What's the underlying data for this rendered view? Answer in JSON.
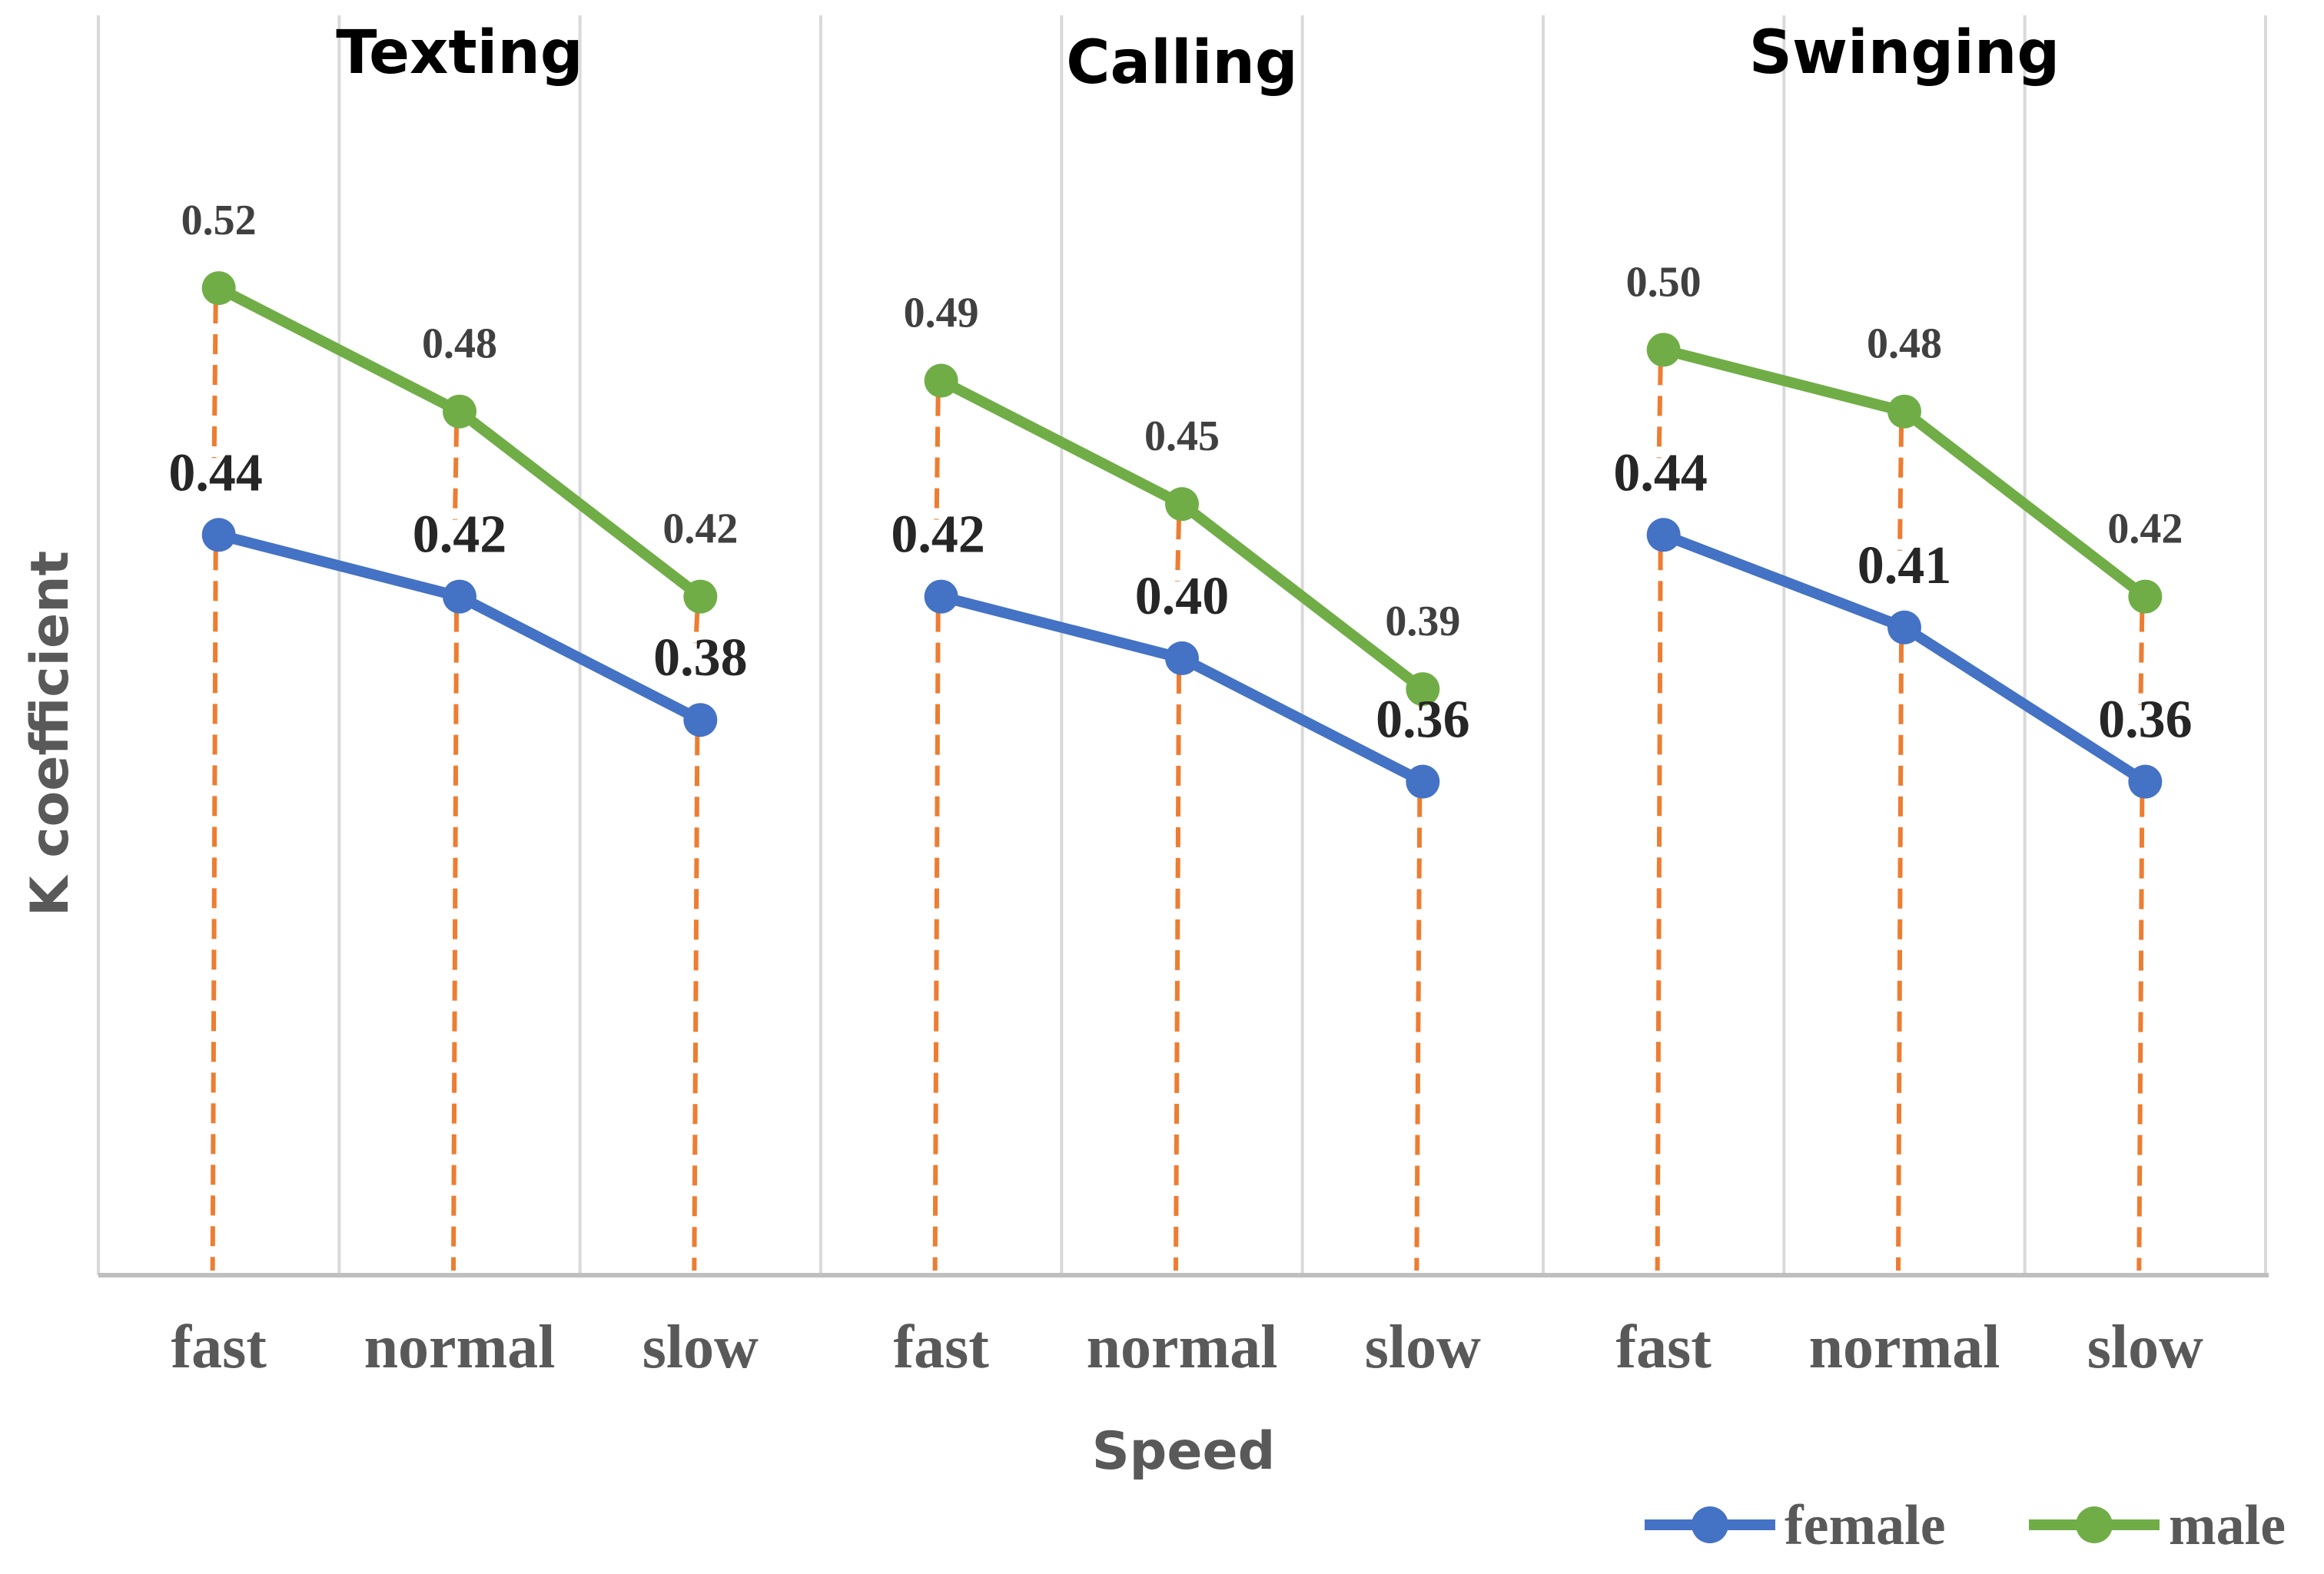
{
  "chart_data": {
    "type": "line",
    "ylabel": "K coefficient",
    "xlabel": "Speed",
    "ylim": [
      0.2,
      0.55
    ],
    "categories": [
      "fast",
      "normal",
      "slow"
    ],
    "panels": [
      {
        "title": "Texting",
        "series": [
          {
            "name": "female",
            "values": [
              0.44,
              0.42,
              0.38
            ],
            "labels": [
              "0.44",
              "0.42",
              "0.38"
            ]
          },
          {
            "name": "male",
            "values": [
              0.52,
              0.48,
              0.42
            ],
            "labels": [
              "0.52",
              "0.48",
              "0.42"
            ]
          }
        ]
      },
      {
        "title": "Calling",
        "series": [
          {
            "name": "female",
            "values": [
              0.42,
              0.4,
              0.36
            ],
            "labels": [
              "0.42",
              "0.40",
              "0.36"
            ]
          },
          {
            "name": "male",
            "values": [
              0.49,
              0.45,
              0.39
            ],
            "labels": [
              "0.49",
              "0.45",
              "0.39"
            ]
          }
        ]
      },
      {
        "title": "Swinging",
        "series": [
          {
            "name": "female",
            "values": [
              0.44,
              0.41,
              0.36
            ],
            "labels": [
              "0.44",
              "0.41",
              "0.36"
            ]
          },
          {
            "name": "male",
            "values": [
              0.5,
              0.48,
              0.42
            ],
            "labels": [
              "0.50",
              "0.48",
              "0.42"
            ]
          }
        ]
      }
    ],
    "legend": [
      {
        "name": "female",
        "color": "#4472C4"
      },
      {
        "name": "male",
        "color": "#70AD47"
      }
    ],
    "legend_position": "bottom-right",
    "colors": {
      "female": "#4472C4",
      "male": "#70AD47",
      "dropline": "#ED7D31",
      "grid": "#D9D9D9",
      "axis": "#BFBFBF"
    }
  }
}
